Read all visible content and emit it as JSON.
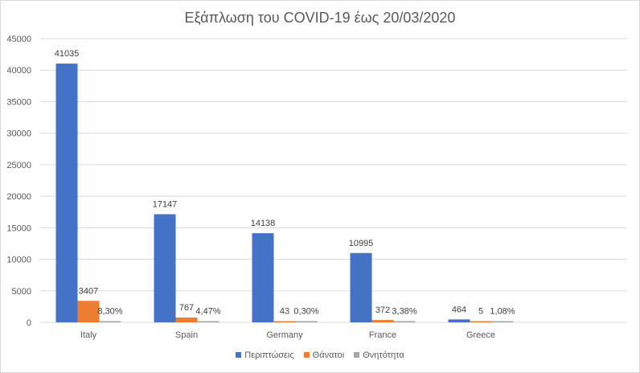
{
  "chart_data": {
    "type": "bar",
    "title": "Εξάπλωση του COVID-19 έως 20/03/2020",
    "categories": [
      "Italy",
      "Spain",
      "Germany",
      "France",
      "Greece"
    ],
    "series": [
      {
        "name": "Περιπτώσεις",
        "color": "#4472c4",
        "values": [
          41035,
          17147,
          14138,
          10995,
          464
        ],
        "labels": [
          "41035",
          "17147",
          "14138",
          "10995",
          "464"
        ]
      },
      {
        "name": "Θάνατοι",
        "color": "#ed7d31",
        "values": [
          3407,
          767,
          43,
          372,
          5
        ],
        "labels": [
          "3407",
          "767",
          "43",
          "372",
          "5"
        ]
      },
      {
        "name": "Θνητότητα",
        "color": "#a5a5a5",
        "values": [
          0.083,
          0.0447,
          0.003,
          0.0338,
          0.0108
        ],
        "labels": [
          "8,30%",
          "4,47%",
          "0,30%",
          "3,38%",
          "1,08%"
        ]
      }
    ],
    "ylim": [
      0,
      45000
    ],
    "yticks": [
      0,
      5000,
      10000,
      15000,
      20000,
      25000,
      30000,
      35000,
      40000,
      45000
    ],
    "grid": true,
    "legend_position": "bottom"
  }
}
